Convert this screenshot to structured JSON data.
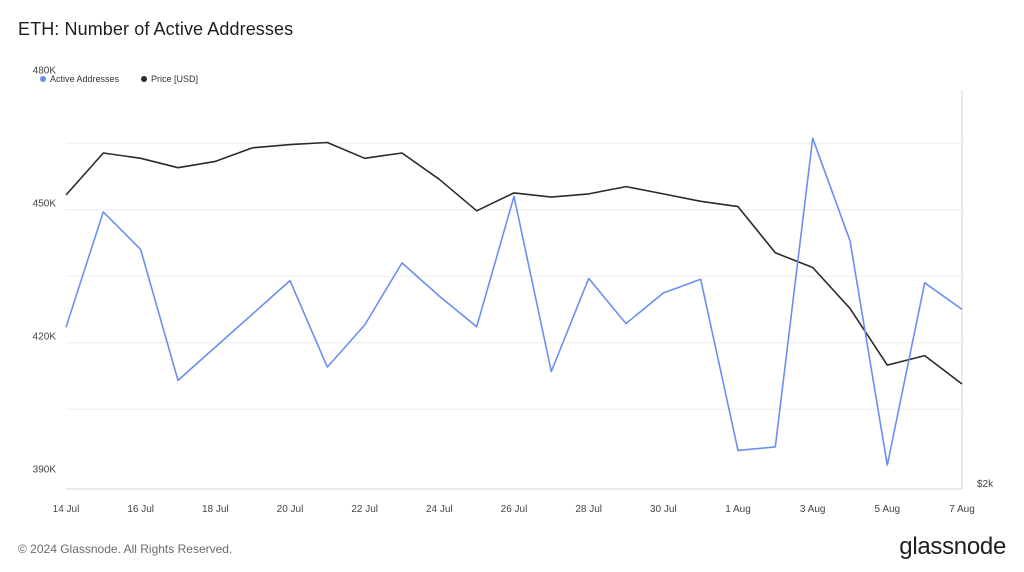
{
  "chart_data": {
    "type": "line",
    "title": "ETH: Number of Active Addresses",
    "x": [
      "14 Jul",
      "15 Jul",
      "16 Jul",
      "17 Jul",
      "18 Jul",
      "19 Jul",
      "20 Jul",
      "21 Jul",
      "22 Jul",
      "23 Jul",
      "24 Jul",
      "25 Jul",
      "26 Jul",
      "27 Jul",
      "28 Jul",
      "29 Jul",
      "30 Jul",
      "31 Jul",
      "1 Aug",
      "2 Aug",
      "3 Aug",
      "4 Aug",
      "5 Aug",
      "6 Aug",
      "7 Aug"
    ],
    "x_tick_labels": [
      "14 Jul",
      "16 Jul",
      "18 Jul",
      "20 Jul",
      "22 Jul",
      "24 Jul",
      "26 Jul",
      "28 Jul",
      "30 Jul",
      "1 Aug",
      "3 Aug",
      "5 Aug",
      "7 Aug"
    ],
    "y_tick_labels": [
      "390K",
      "420K",
      "450K",
      "480K"
    ],
    "y_ticks": [
      390000,
      420000,
      450000,
      480000
    ],
    "ylim": [
      387000,
      477000
    ],
    "right_axis_label": "$2k",
    "series": [
      {
        "name": "Active Addresses",
        "color": "#6b8ef2",
        "values": [
          423500,
          449500,
          441000,
          411500,
          419000,
          426500,
          434000,
          414500,
          424000,
          438000,
          430500,
          423600,
          453000,
          413500,
          434500,
          424300,
          431200,
          434300,
          395700,
          396500,
          466100,
          443000,
          392400,
          433500,
          427500
        ]
      },
      {
        "name": "Price [USD]",
        "color": "#2b2b2b",
        "values": [
          3460,
          3500,
          3495,
          3486,
          3492,
          3505,
          3508,
          3510,
          3495,
          3500,
          3475,
          3445,
          3462,
          3458,
          3461,
          3468,
          3461,
          3454,
          3449,
          3405,
          3391,
          3352,
          3298,
          3307,
          3280
        ]
      }
    ],
    "grid": true,
    "legend_position": "top-left"
  },
  "footer": {
    "copyright": "© 2024 Glassnode. All Rights Reserved."
  },
  "brand": {
    "name": "glassnode"
  }
}
